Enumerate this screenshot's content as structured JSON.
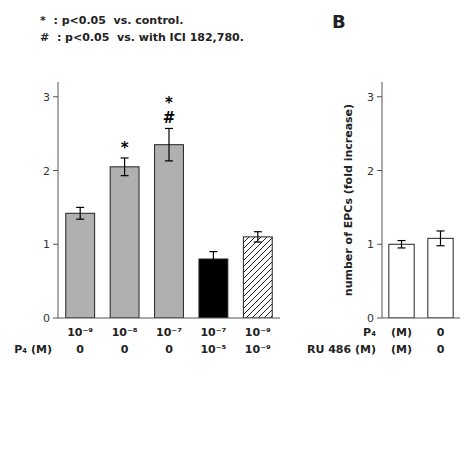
{
  "chart_data": [
    {
      "type": "bar",
      "subtitle": [
        "*  : p<0.05  vs. control.",
        "#  : p<0.05  vs. with ICI 182,780."
      ],
      "categories": [
        [
          "10⁻⁹",
          "0"
        ],
        [
          "10⁻⁸",
          "0"
        ],
        [
          "10⁻⁷",
          "0"
        ],
        [
          "10⁻⁷",
          "10⁻⁵"
        ],
        [
          "10⁻⁹",
          "10⁻⁹"
        ]
      ],
      "row_labels": [
        null,
        "P₄ (M)"
      ],
      "values": [
        1.42,
        2.05,
        2.35,
        0.8,
        1.1
      ],
      "errors": [
        0.08,
        0.12,
        0.22,
        0.1,
        0.07
      ],
      "colors": [
        "#b0b0b0",
        "#b0b0b0",
        "#b0b0b0",
        "#000000",
        "hatched"
      ],
      "annotations": [
        {
          "text": "*",
          "bar": 1
        },
        {
          "text": "#",
          "bar": 2
        },
        {
          "text": "*",
          "bar": 2
        }
      ],
      "ylim": [
        0,
        3.2
      ],
      "yticks": [
        0,
        1,
        2,
        3
      ],
      "grid": false
    },
    {
      "type": "bar",
      "title": "B",
      "ylabel": "number of EPCs (fold increase)",
      "categories": [
        [
          "(M)",
          "(M)"
        ],
        [
          "0",
          "0"
        ]
      ],
      "row_labels": [
        "P₄",
        "RU 486 (M)"
      ],
      "values": [
        1.0,
        1.08
      ],
      "errors": [
        0.05,
        0.1
      ],
      "colors": [
        "#ffffff",
        "#ffffff"
      ],
      "ylim": [
        0,
        3.2
      ],
      "yticks": [
        0,
        1,
        2,
        3
      ],
      "grid": false
    }
  ]
}
